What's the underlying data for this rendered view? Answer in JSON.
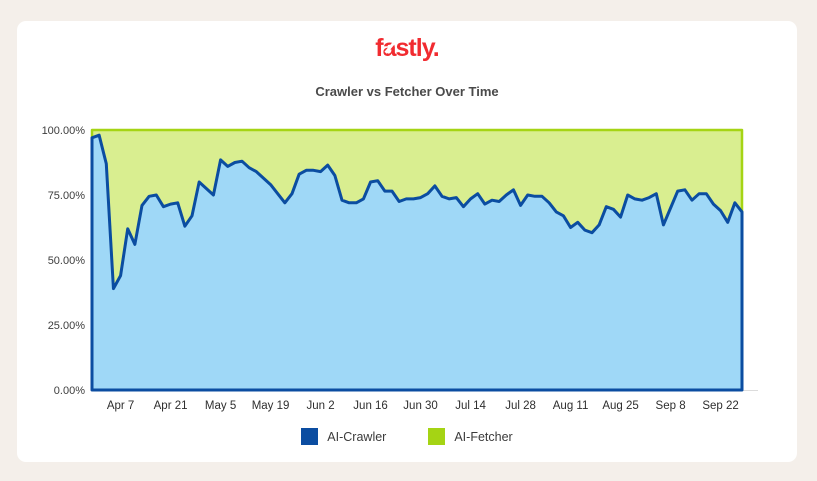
{
  "page": {
    "background_color": "#f4efea",
    "card_color": "#ffffff"
  },
  "header": {
    "logo_text": "fastly.",
    "logo_color": "#f12b30"
  },
  "chart": {
    "title": "Crawler vs Fetcher Over Time"
  },
  "chart_data": {
    "type": "area",
    "stacked": true,
    "normalized_to_100_percent": true,
    "title": "Crawler vs Fetcher Over Time",
    "xlabel": "",
    "ylabel": "",
    "ylim": [
      0,
      100
    ],
    "grid": false,
    "legend_position": "bottom",
    "y_tick_labels": [
      "100.00%",
      "75.00%",
      "50.00%",
      "25.00%",
      "0.00%"
    ],
    "x_tick_labels": [
      "Apr 7",
      "Apr 21",
      "May 5",
      "May 19",
      "Jun 2",
      "Jun 16",
      "Jun 30",
      "Jul 14",
      "Jul 28",
      "Aug 11",
      "Aug 25",
      "Sep 8",
      "Sep 22"
    ],
    "dates": [
      "Mar 30",
      "Apr 1",
      "Apr 3",
      "Apr 5",
      "Apr 7",
      "Apr 9",
      "Apr 11",
      "Apr 13",
      "Apr 15",
      "Apr 17",
      "Apr 19",
      "Apr 21",
      "Apr 23",
      "Apr 25",
      "Apr 27",
      "Apr 29",
      "May 1",
      "May 3",
      "May 5",
      "May 7",
      "May 9",
      "May 11",
      "May 13",
      "May 15",
      "May 17",
      "May 19",
      "May 21",
      "May 23",
      "May 25",
      "May 27",
      "May 29",
      "May 31",
      "Jun 2",
      "Jun 4",
      "Jun 6",
      "Jun 8",
      "Jun 10",
      "Jun 12",
      "Jun 14",
      "Jun 16",
      "Jun 18",
      "Jun 20",
      "Jun 22",
      "Jun 24",
      "Jun 26",
      "Jun 28",
      "Jun 30",
      "Jul 2",
      "Jul 4",
      "Jul 6",
      "Jul 8",
      "Jul 10",
      "Jul 12",
      "Jul 14",
      "Jul 16",
      "Jul 18",
      "Jul 20",
      "Jul 22",
      "Jul 24",
      "Jul 26",
      "Jul 28",
      "Jul 30",
      "Aug 1",
      "Aug 3",
      "Aug 5",
      "Aug 7",
      "Aug 9",
      "Aug 11",
      "Aug 13",
      "Aug 15",
      "Aug 17",
      "Aug 19",
      "Aug 21",
      "Aug 23",
      "Aug 25",
      "Aug 27",
      "Aug 29",
      "Aug 31",
      "Sep 2",
      "Sep 4",
      "Sep 6",
      "Sep 8",
      "Sep 10",
      "Sep 12",
      "Sep 14",
      "Sep 16",
      "Sep 18",
      "Sep 20",
      "Sep 22",
      "Sep 24",
      "Sep 26",
      "Sep 28"
    ],
    "series": [
      {
        "name": "AI-Crawler",
        "unit": "%",
        "line_color": "#0b4da1",
        "fill_color": "#9fd8f7",
        "values": [
          97,
          98,
          87,
          39,
          44,
          62,
          56,
          71,
          74.5,
          75,
          70.5,
          71.5,
          72,
          63,
          67,
          80,
          77.5,
          75,
          88.5,
          86,
          87.5,
          88,
          85.5,
          84,
          81.5,
          79,
          75.5,
          72,
          75.5,
          83,
          84.5,
          84.5,
          84,
          86.5,
          82.5,
          73,
          72,
          72,
          73.5,
          80,
          80.5,
          76.5,
          76.5,
          72.5,
          73.5,
          73.5,
          74,
          75.5,
          78.5,
          74.5,
          73.5,
          74,
          70.5,
          73.5,
          75.5,
          71.5,
          73,
          72.5,
          75,
          77,
          71,
          75,
          74.5,
          74.5,
          72,
          68.5,
          67,
          62.5,
          64.5,
          61.5,
          60.5,
          63.5,
          70.5,
          69.5,
          66.5,
          75,
          73.5,
          73,
          74,
          75.5,
          63.5,
          70,
          76.5,
          77,
          73,
          75.5,
          75.5,
          71.5,
          69,
          64.5,
          72,
          68.5
        ]
      },
      {
        "name": "AI-Fetcher",
        "unit": "%",
        "line_color": "#a5d414",
        "fill_color": "#d9ee90",
        "values_rule": "complement_to_100 (AI-Fetcher = 100 - AI-Crawler at every date)"
      }
    ]
  }
}
